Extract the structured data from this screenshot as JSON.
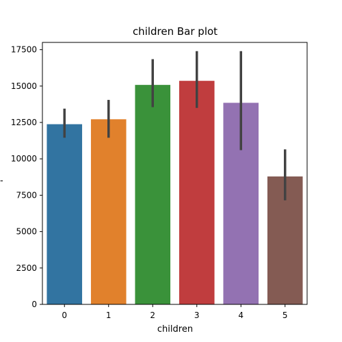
{
  "chart_data": {
    "type": "bar",
    "title": "children Bar plot",
    "xlabel": "children",
    "ylabel": "-",
    "categories": [
      "0",
      "1",
      "2",
      "3",
      "4",
      "5"
    ],
    "values": [
      12380,
      12720,
      15080,
      15360,
      13850,
      8790
    ],
    "error_low": [
      11450,
      11450,
      13550,
      13500,
      10600,
      7150
    ],
    "error_high": [
      13450,
      14050,
      16850,
      17400,
      17400,
      10650
    ],
    "ylim": [
      0,
      18000
    ],
    "yticks": [
      0,
      2500,
      5000,
      7500,
      10000,
      12500,
      15000,
      17500
    ],
    "colors": [
      "#3274a1",
      "#e1812c",
      "#3a923a",
      "#c03d3e",
      "#9372b2",
      "#845b53"
    ],
    "errorbar_color": "#424242",
    "grid": false,
    "legend": "none"
  }
}
